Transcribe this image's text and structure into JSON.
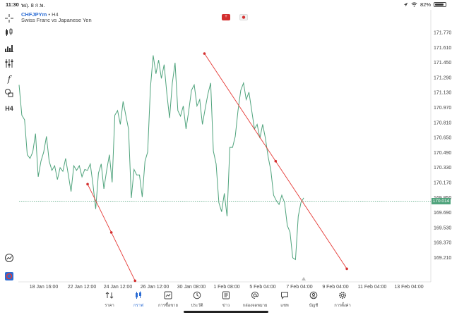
{
  "status_bar": {
    "time": "11:30",
    "date": "พฤ. 8 ก.พ.",
    "battery": "82%",
    "icons": [
      "wifi-icon",
      "location-icon",
      "battery-icon"
    ]
  },
  "chart": {
    "symbol": "CHFJPYm",
    "timeframe": "H4",
    "description": "Swiss Franc vs Japanese Yen",
    "current_price_label": "170.014"
  },
  "toolbar": {
    "icons": [
      "crosshair-icon",
      "candles-icon",
      "bar-chart-icon",
      "indicators-icon",
      "function-icon",
      "shapes-icon",
      "timeframe-icon"
    ],
    "timeframe_label": "H4",
    "bottom_icons": [
      "zoom-chart-icon",
      "broker-logo-icon"
    ]
  },
  "chart_data": {
    "type": "line",
    "y_ticks": [
      "171.770",
      "171.610",
      "171.450",
      "171.290",
      "171.130",
      "170.970",
      "170.810",
      "170.650",
      "170.490",
      "170.330",
      "170.170",
      "170.014",
      "169.850",
      "169.690",
      "169.530",
      "169.370",
      "169.210"
    ],
    "x_ticks": [
      "18 Jan 16:00",
      "22 Jan 12:00",
      "24 Jan 12:00",
      "26 Jan 12:00",
      "30 Jan 08:00",
      "1 Feb 08:00",
      "5 Feb 04:00",
      "7 Feb 04:00",
      "9 Feb 04:00",
      "11 Feb 04:00",
      "13 Feb 04:00"
    ],
    "ylim": [
      169.13,
      171.85
    ],
    "current_price": 170.014,
    "series": [
      {
        "values": [
          171.28,
          170.95,
          170.9,
          170.52,
          170.48,
          170.55,
          170.75,
          170.28,
          170.45,
          170.55,
          170.72,
          170.45,
          170.35,
          170.4,
          170.25,
          170.38,
          170.34,
          170.48,
          170.3,
          170.12,
          170.4,
          170.35,
          170.4,
          170.28,
          170.36,
          170.35,
          170.42,
          170.2,
          169.93,
          170.32,
          170.42,
          170.15,
          170.35,
          170.52,
          170.22,
          170.95,
          171.0,
          170.85,
          171.1,
          170.95,
          170.8,
          170.05,
          170.36,
          170.3,
          170.3,
          170.06,
          170.45,
          170.55,
          171.25,
          171.6,
          171.4,
          171.55,
          171.35,
          171.5,
          171.18,
          170.92,
          171.3,
          171.52,
          171.0,
          170.94,
          171.05,
          170.8,
          171.0,
          171.22,
          171.28,
          171.05,
          171.12,
          170.85,
          171.02,
          171.18,
          171.3,
          170.56,
          170.42,
          170.0,
          169.9,
          170.1,
          169.85,
          170.6,
          170.6,
          170.72,
          171.0,
          171.22,
          171.3,
          171.12,
          171.2,
          171.0,
          170.8,
          170.85,
          170.7,
          170.85,
          170.7,
          170.5,
          170.35,
          170.08,
          170.02,
          169.98,
          170.08,
          170.0,
          169.75,
          169.68,
          169.4,
          169.38,
          169.85,
          170.0,
          170.05
        ]
      }
    ],
    "trendlines": [
      {
        "from": {
          "x_index": 1.2,
          "y": 170.2
        },
        "to": {
          "x_index": 2.5,
          "y": 169.15
        }
      },
      {
        "from": {
          "x_index": 4.4,
          "y": 171.62
        },
        "to": {
          "x_index": 8.3,
          "y": 169.28
        }
      }
    ],
    "grid": false
  },
  "bottom_nav": {
    "items": [
      {
        "label": "ราคา",
        "icon": "quotes-arrows-icon"
      },
      {
        "label": "กราฟ",
        "icon": "chart-candles-icon",
        "active": true
      },
      {
        "label": "การซื้อขาย",
        "icon": "trade-chart-icon"
      },
      {
        "label": "ประวัติ",
        "icon": "history-clock-icon"
      },
      {
        "label": "ข่าว",
        "icon": "news-icon"
      },
      {
        "label": "กล่องจดหมาย",
        "icon": "mailbox-at-icon"
      },
      {
        "label": "แชท",
        "icon": "chat-bubble-icon"
      },
      {
        "label": "บัญชี",
        "icon": "account-user-icon"
      },
      {
        "label": "การตั้งค่า",
        "icon": "settings-gear-icon"
      }
    ]
  }
}
